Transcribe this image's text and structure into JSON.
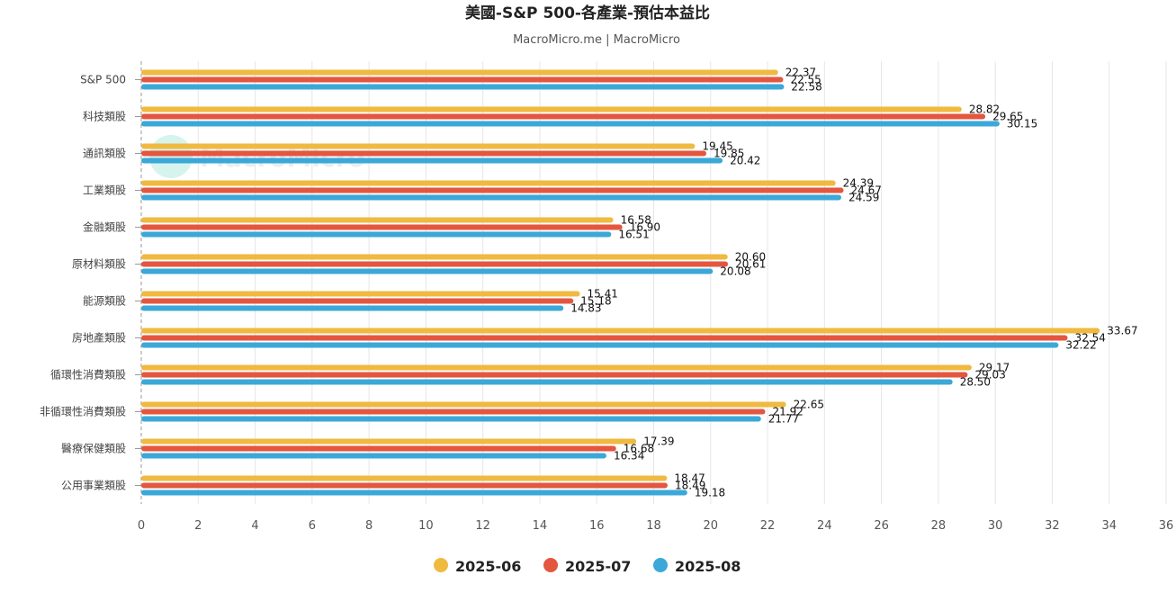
{
  "chart_data": {
    "type": "bar",
    "orientation": "horizontal",
    "title": "美國-S&P 500-各產業-預估本益比",
    "subtitle": "MacroMicro.me | MacroMicro",
    "watermark": "MacroMicro",
    "categories": [
      "S&P 500",
      "科技類股",
      "通訊類股",
      "工業類股",
      "金融類股",
      "原材料類股",
      "能源類股",
      "房地產類股",
      "循環性消費類股",
      "非循環性消費類股",
      "醫療保健類股",
      "公用事業類股"
    ],
    "series": [
      {
        "name": "2025-06",
        "color": "#f0b940",
        "values": [
          22.37,
          28.82,
          19.45,
          24.39,
          16.58,
          20.6,
          15.41,
          33.67,
          29.17,
          22.65,
          17.39,
          18.47
        ]
      },
      {
        "name": "2025-07",
        "color": "#e4563f",
        "values": [
          22.55,
          29.65,
          19.85,
          24.67,
          16.9,
          20.61,
          15.18,
          32.54,
          29.03,
          21.92,
          16.68,
          18.49
        ]
      },
      {
        "name": "2025-08",
        "color": "#3ba8d8",
        "values": [
          22.58,
          30.15,
          20.42,
          24.59,
          16.51,
          20.08,
          14.83,
          32.22,
          28.5,
          21.77,
          16.34,
          19.18
        ]
      }
    ],
    "xlim": [
      0,
      36
    ],
    "xticks": [
      0,
      2,
      4,
      6,
      8,
      10,
      12,
      14,
      16,
      18,
      20,
      22,
      24,
      26,
      28,
      30,
      32,
      34,
      36
    ],
    "grid": true,
    "legend_position": "bottom"
  }
}
